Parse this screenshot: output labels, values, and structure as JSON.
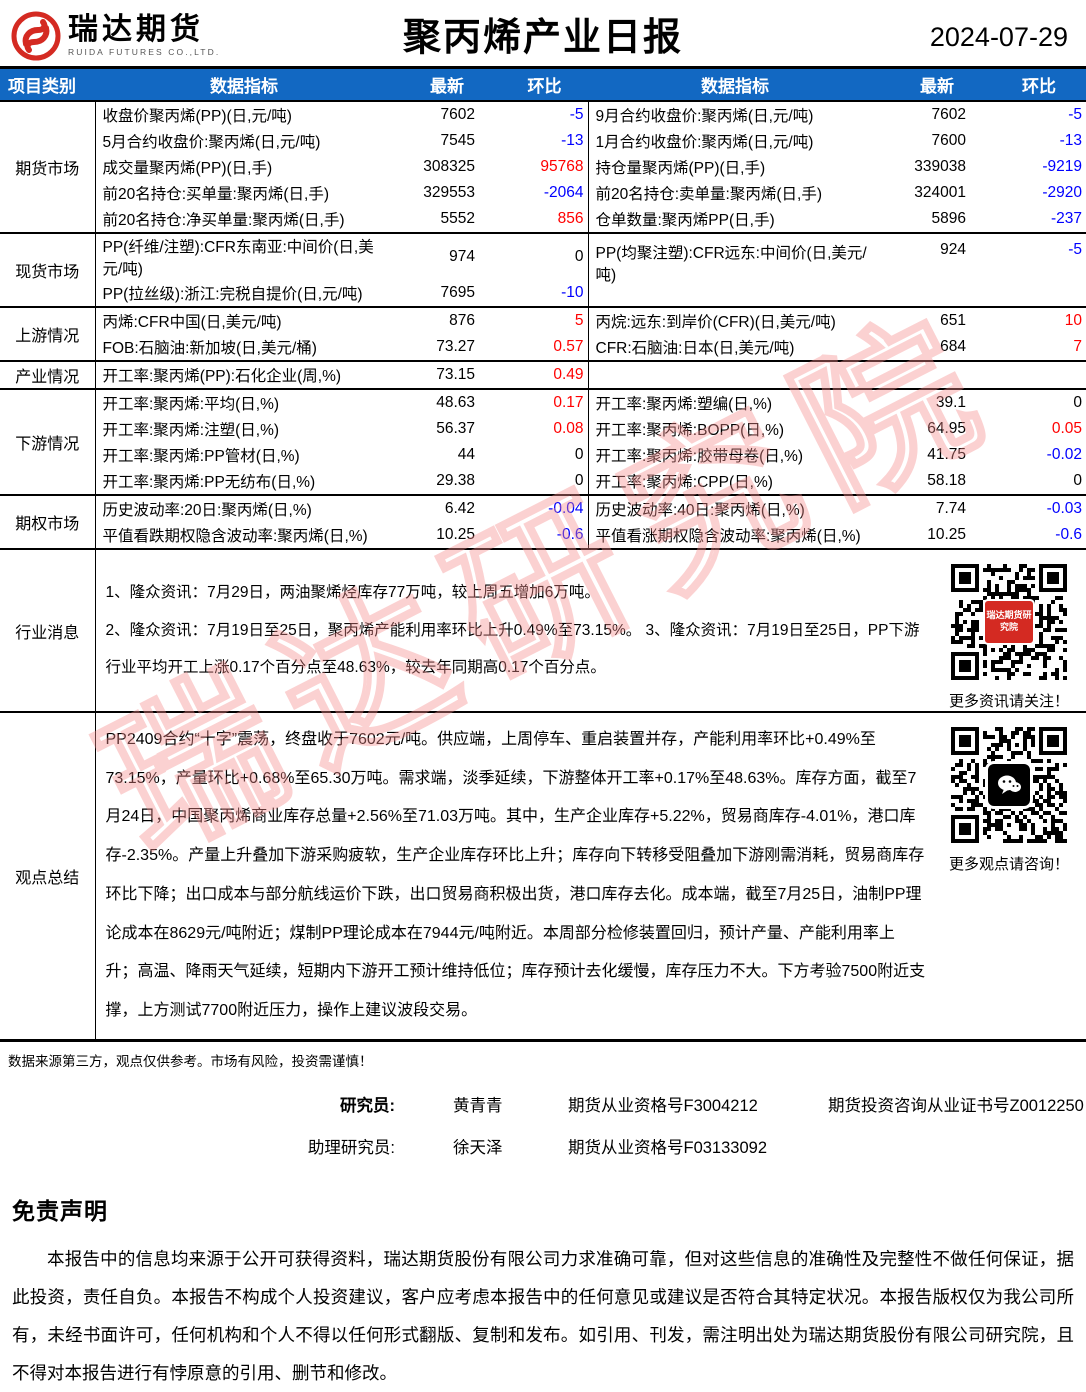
{
  "header": {
    "brand": "瑞达期货",
    "brand_sub": "RUIDA FUTURES CO.,LTD.",
    "title": "聚丙烯产业日报",
    "date": "2024-07-29"
  },
  "colors": {
    "up": "#ff0000",
    "down": "#0000ff",
    "zero": "#000000",
    "header_bg": "#1268c2",
    "brand_red": "#d42a22",
    "watermark": "#f68c8c"
  },
  "watermark_text": "瑞达研究院",
  "table": {
    "header": [
      "项目类别",
      "数据指标",
      "最新",
      "环比",
      "数据指标",
      "最新",
      "环比"
    ],
    "futures": {
      "name": "期货市场",
      "rows": [
        {
          "ll": "收盘价聚丙烯(PP)(日,元/吨)",
          "lv": "7602",
          "lc": "-5",
          "rl": "9月合约收盘价:聚丙烯(日,元/吨)",
          "rv": "7602",
          "rc": "-5"
        },
        {
          "ll": "5月合约收盘价:聚丙烯(日,元/吨)",
          "lv": "7545",
          "lc": "-13",
          "rl": "1月合约收盘价:聚丙烯(日,元/吨)",
          "rv": "7600",
          "rc": "-13"
        },
        {
          "ll": "成交量聚丙烯(PP)(日,手)",
          "lv": "308325",
          "lc": "95768",
          "rl": "持仓量聚丙烯(PP)(日,手)",
          "rv": "339038",
          "rc": "-9219"
        },
        {
          "ll": "前20名持仓:买单量:聚丙烯(日,手)",
          "lv": "329553",
          "lc": "-2064",
          "rl": "前20名持仓:卖单量:聚丙烯(日,手)",
          "rv": "324001",
          "rc": "-2920"
        },
        {
          "ll": "前20名持仓:净买单量:聚丙烯(日,手)",
          "lv": "5552",
          "lc": "856",
          "rl": "仓单数量:聚丙烯PP(日,手)",
          "rv": "5896",
          "rc": "-237"
        }
      ]
    },
    "spot": {
      "name": "现货市场",
      "rows": [
        {
          "ll": "PP(纤维/注塑):CFR东南亚:中间价(日,美元/吨)",
          "lv": "974",
          "lc": "0",
          "rl": "PP(均聚注塑):CFR远东:中间价(日,美元/吨)",
          "rv": "924",
          "rc": "-5"
        },
        {
          "ll": "PP(拉丝级):浙江:完税自提价(日,元/吨)",
          "lv": "7695",
          "lc": "-10"
        }
      ]
    },
    "upstream": {
      "name": "上游情况",
      "rows": [
        {
          "ll": "丙烯:CFR中国(日,美元/吨)",
          "lv": "876",
          "lc": "5",
          "rl": "丙烷:远东:到岸价(CFR)(日,美元/吨)",
          "rv": "651",
          "rc": "10"
        },
        {
          "ll": "FOB:石脑油:新加坡(日,美元/桶)",
          "lv": "73.27",
          "lc": "0.57",
          "rl": "CFR:石脑油:日本(日,美元/吨)",
          "rv": "684",
          "rc": "7"
        }
      ]
    },
    "industry": {
      "name": "产业情况",
      "rows": [
        {
          "ll": "开工率:聚丙烯(PP):石化企业(周,%)",
          "lv": "73.15",
          "lc": "0.49",
          "rl": "",
          "rv": "",
          "rc": ""
        }
      ]
    },
    "downstream": {
      "name": "下游情况",
      "rows": [
        {
          "ll": "开工率:聚丙烯:平均(日,%)",
          "lv": "48.63",
          "lc": "0.17",
          "rl": "开工率:聚丙烯:塑编(日,%)",
          "rv": "39.1",
          "rc": "0"
        },
        {
          "ll": "开工率:聚丙烯:注塑(日,%)",
          "lv": "56.37",
          "lc": "0.08",
          "rl": "开工率:聚丙烯:BOPP(日,%)",
          "rv": "64.95",
          "rc": "0.05"
        },
        {
          "ll": "开工率:聚丙烯:PP管材(日,%)",
          "lv": "44",
          "lc": "0",
          "rl": "开工率:聚丙烯:胶带母卷(日,%)",
          "rv": "41.75",
          "rc": "-0.02"
        },
        {
          "ll": "开工率:聚丙烯:PP无纺布(日,%)",
          "lv": "29.38",
          "lc": "0",
          "rl": "开工率:聚丙烯:CPP(日,%)",
          "rv": "58.18",
          "rc": "0"
        }
      ]
    },
    "options": {
      "name": "期权市场",
      "rows": [
        {
          "ll": "历史波动率:20日:聚丙烯(日,%)",
          "lv": "6.42",
          "lc": "-0.04",
          "rl": "历史波动率:40日:聚丙烯(日,%)",
          "rv": "7.74",
          "rc": "-0.03"
        },
        {
          "ll": "平值看跌期权隐含波动率:聚丙烯(日,%)",
          "lv": "10.25",
          "lc": "-0.6",
          "rl": "平值看涨期权隐含波动率:聚丙烯(日,%)",
          "rv": "10.25",
          "rc": "-0.6"
        }
      ]
    },
    "news": {
      "name": "行业消息",
      "p1": "1、隆众资讯：7月29日，两油聚烯烃库存77万吨，较上周五增加6万吨。",
      "p2": "2、隆众资讯：7月19日至25日，聚丙烯产能利用率环比上升0.49%至73.15%。 3、隆众资讯：7月19日至25日，PP下游行业平均开工上涨0.17个百分点至48.63%，较去年同期高0.17个百分点。",
      "qr_badge": "瑞达期货研究院",
      "qr_caption": "更多资讯请关注！"
    },
    "view": {
      "name": "观点总结",
      "body": "PP2409合约“十字”震荡，终盘收于7602元/吨。供应端，上周停车、重启装置并存，产能利用率环比+0.49%至73.15%，产量环比+0.68%至65.30万吨。需求端，淡季延续，下游整体开工率+0.17%至48.63%。库存方面，截至7月24日，中国聚丙烯商业库存总量+2.56%至71.03万吨。其中，生产企业库存+5.22%，贸易商库存-4.01%，港口库存-2.35%。产量上升叠加下游采购疲软，生产企业库存环比上升；库存向下转移受阻叠加下游刚需消耗，贸易商库存环比下降；出口成本与部分航线运价下跌，出口贸易商积极出货，港口库存去化。成本端，截至7月25日，油制PP理论成本在8629元/吨附近；煤制PP理论成本在7944元/吨附近。本周部分检修装置回归，预计产量、产能利用率上升；高温、降雨天气延续，短期内下游开工预计维持低位；库存预计去化缓慢，库存压力不大。下方考验7500附近支撑，上方测试7700附近压力，操作上建议波段交易。",
      "qr_caption": "更多观点请咨询！"
    }
  },
  "footnote": "数据来源第三方，观点仅供参考。市场有风险，投资需谨慎！",
  "researchers": [
    {
      "label": "研究员:",
      "name": "黄青青",
      "cert1": "期货从业资格号F3004212",
      "cert2": "期货投资咨询从业证书号Z0012250"
    },
    {
      "label": "助理研究员:",
      "name": "徐天泽",
      "cert1": "期货从业资格号F03133092",
      "cert2": ""
    }
  ],
  "disclaimer": {
    "title": "免责声明",
    "body": "本报告中的信息均来源于公开可获得资料，瑞达期货股份有限公司力求准确可靠，但对这些信息的准确性及完整性不做任何保证，据此投资，责任自负。本报告不构成个人投资建议，客户应考虑本报告中的任何意见或建议是否符合其特定状况。本报告版权仅为我公司所有，未经书面许可，任何机构和个人不得以任何形式翻版、复制和发布。如引用、刊发，需注明出处为瑞达期货股份有限公司研究院，且不得对本报告进行有悖原意的引用、删节和修改。"
  }
}
